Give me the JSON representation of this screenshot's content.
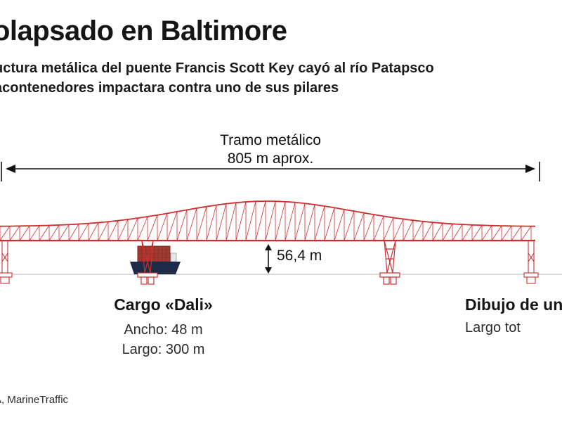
{
  "header": {
    "title": "olapsado en Baltimore",
    "subtitle_line1": "uctura metálica del puente Francis Scott Key cayó al río Patapsco",
    "subtitle_line2": "acontenedores impactara contra uno de sus pilares"
  },
  "diagram": {
    "span_label": "Tramo metálico",
    "span_value": "805 m aprox.",
    "height_value": "56,4 m",
    "ship": {
      "title": "Cargo «Dali»",
      "width_line": "Ancho: 48 m",
      "length_line": "Largo: 300 m"
    },
    "right_note": {
      "title": "Dibujo de un",
      "line": "Largo tot"
    }
  },
  "footer": {
    "source": "A, MarineTraffic"
  },
  "colors": {
    "bridge_red": "#cf2e2e",
    "container_fill": "#a03c32",
    "container_stroke": "#7c2820",
    "ship_hull": "#1c2b47",
    "water_line": "#cfcfcf",
    "dimension": "#111111"
  }
}
